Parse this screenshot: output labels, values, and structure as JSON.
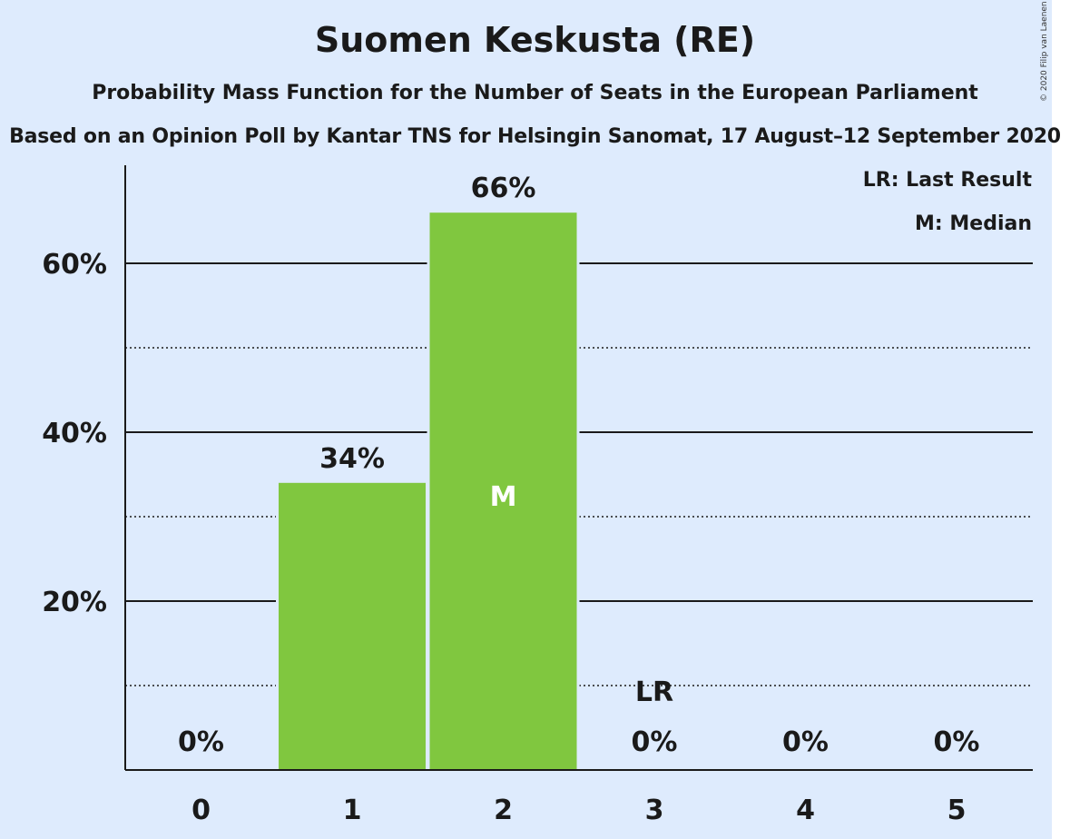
{
  "chart_data": {
    "type": "bar",
    "title": "Suomen Keskusta (RE)",
    "subtitle": "Probability Mass Function for the Number of Seats in the European Parliament",
    "subtitle2": "Based on an Opinion Poll by Kantar TNS for Helsingin Sanomat, 17 August–12 September 2020",
    "categories": [
      "0",
      "1",
      "2",
      "3",
      "4",
      "5"
    ],
    "values": [
      0,
      34,
      66,
      0,
      0,
      0
    ],
    "value_labels": [
      "0%",
      "34%",
      "66%",
      "0%",
      "0%",
      "0%"
    ],
    "ylim": [
      0,
      72
    ],
    "yticks": [
      20,
      40,
      60
    ],
    "ytick_labels": [
      "20%",
      "40%",
      "60%"
    ],
    "minor_yticks": [
      10,
      30,
      50
    ],
    "grid": true,
    "bar_color": "#80c73f",
    "background_color": "#deebfd",
    "median_category": "2",
    "median_marker": "M",
    "last_result_category": "3",
    "last_result_marker": "LR",
    "legend": [
      "LR: Last Result",
      "M: Median"
    ],
    "legend_position": "top-right"
  },
  "copyright": "© 2020 Filip van Laenen"
}
